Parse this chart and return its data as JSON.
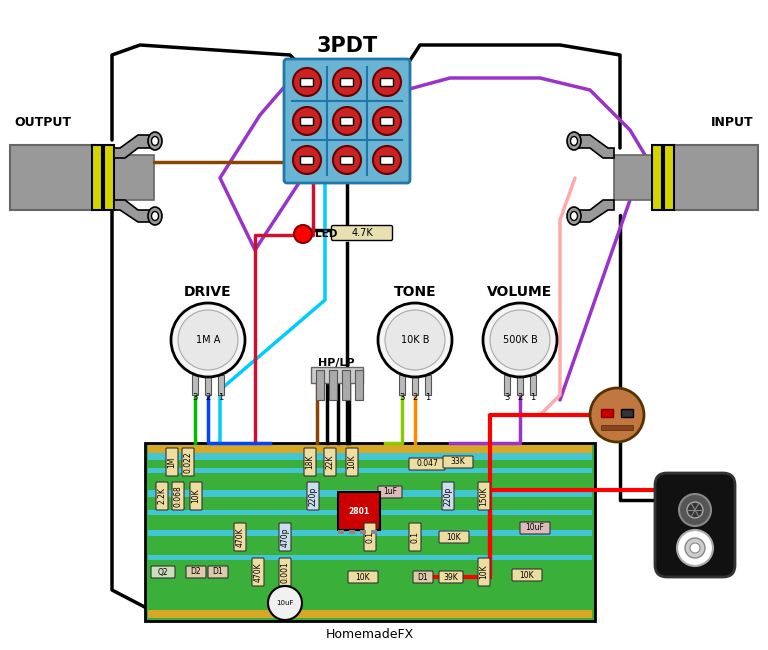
{
  "title": "3PDT",
  "subtitle": "HomemadeFX",
  "bg_color": "#ffffff",
  "output_label": "OUTPUT",
  "input_label": "INPUT",
  "switch_bg": "#6ab4d4",
  "pcb_bg": "#3ab03a",
  "pcb_border": "#000000",
  "pcb_trace_cyan": "#44ccee",
  "pcb_trace_orange": "#f5a623",
  "led_color": "#ff0000",
  "knob_face": "#f5f5f5",
  "jack_yellow": "#d4d400",
  "jack_gray": "#999999",
  "jack_dark": "#666666",
  "bat_brown": "#c07840",
  "bat_snap_black": "#111111",
  "figsize": [
    7.68,
    6.5
  ],
  "dpi": 100,
  "wire_black": "#000000",
  "wire_purple": "#9933cc",
  "wire_cyan": "#00ccff",
  "wire_red": "#ff0000",
  "wire_darkred": "#cc0000",
  "wire_brown": "#884400",
  "wire_green": "#00bb00",
  "wire_blue": "#0044ff",
  "wire_orange": "#ff8800",
  "wire_pink": "#ffaaaa",
  "wire_lgreen": "#88cc00",
  "wire_white": "#ffffff"
}
